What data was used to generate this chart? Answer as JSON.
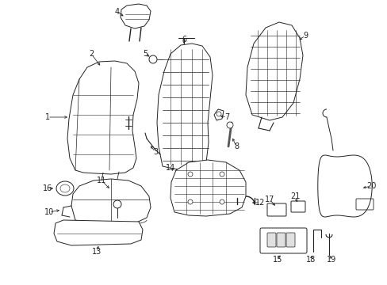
{
  "background_color": "#ffffff",
  "fig_width": 4.89,
  "fig_height": 3.6,
  "dpi": 100,
  "line_color": "#222222",
  "label_fontsize": 7.0,
  "lw": 0.7
}
